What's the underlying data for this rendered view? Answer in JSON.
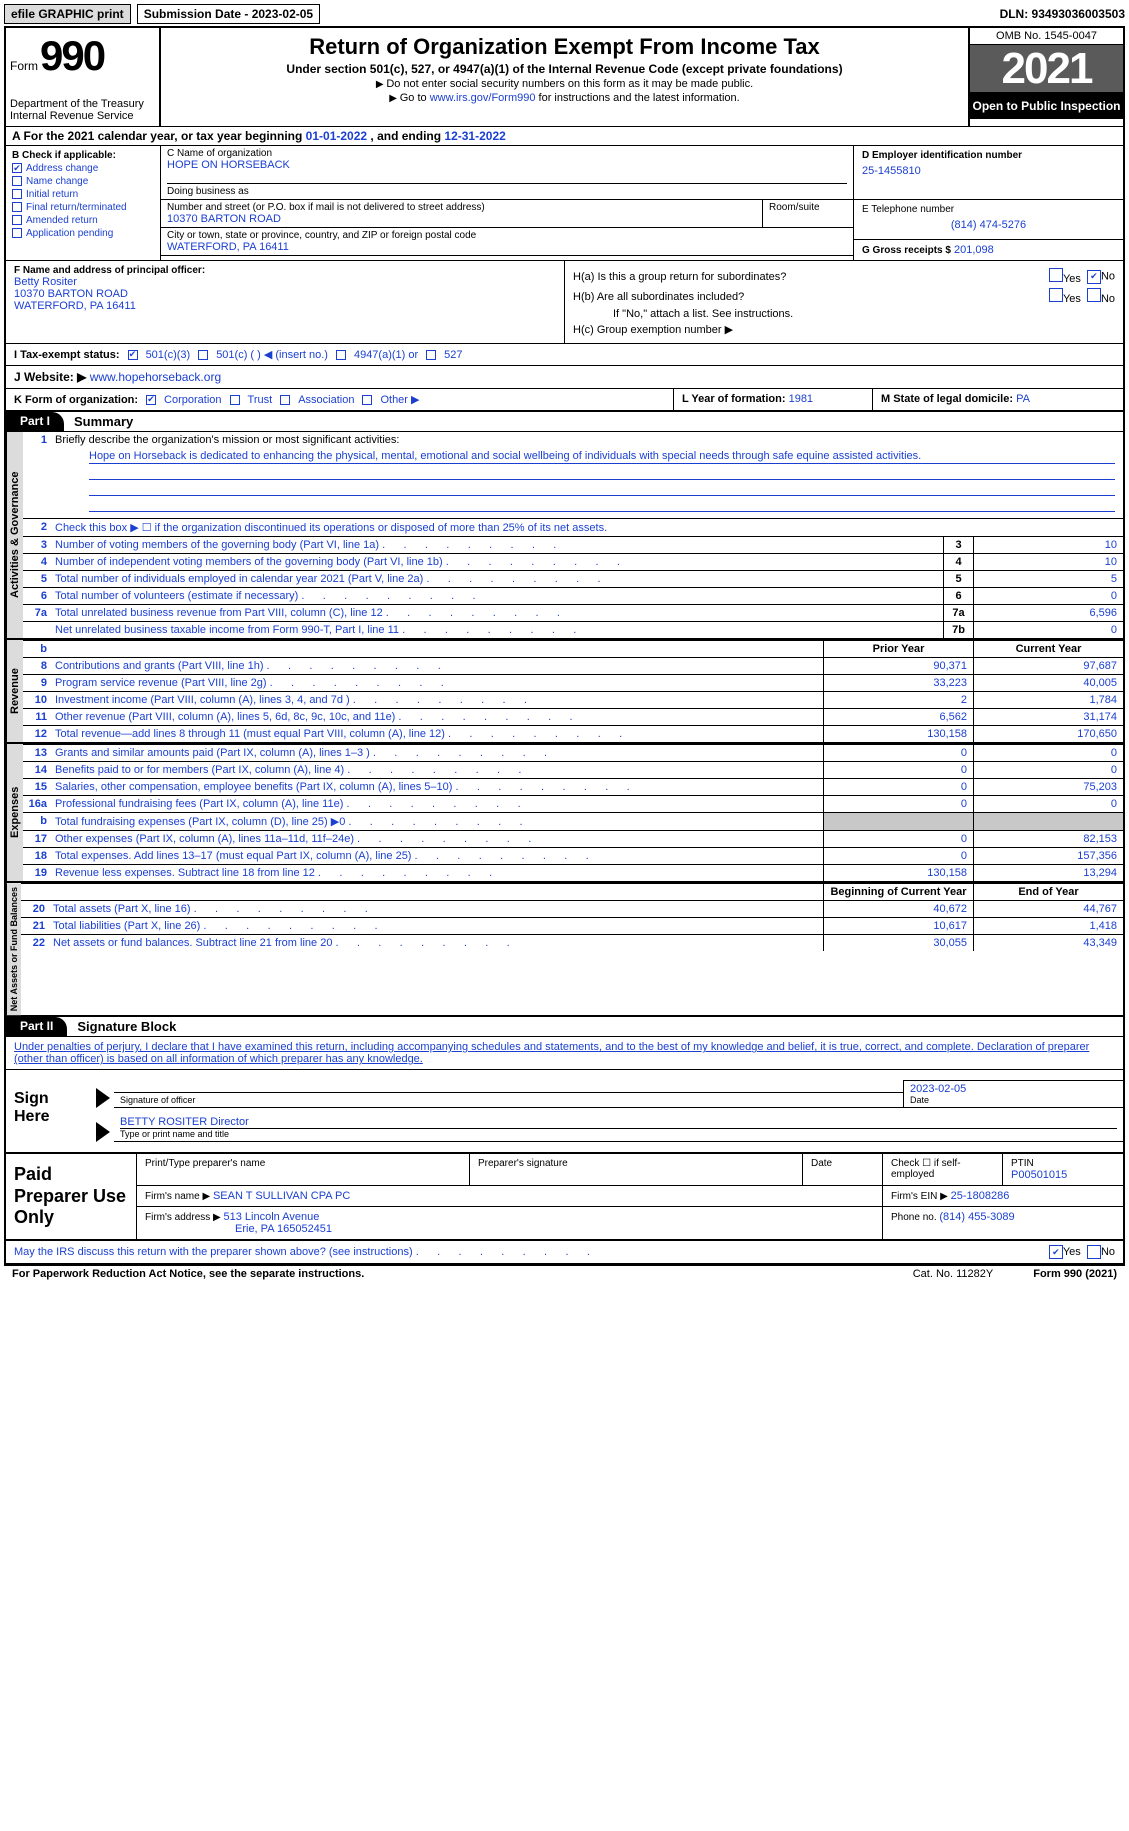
{
  "topbar": {
    "efile": "efile GRAPHIC print",
    "submission": "Submission Date - 2023-02-05",
    "dln": "DLN: 93493036003503"
  },
  "header": {
    "form_word": "Form",
    "form_num": "990",
    "dept": "Department of the Treasury Internal Revenue Service",
    "title": "Return of Organization Exempt From Income Tax",
    "subtitle": "Under section 501(c), 527, or 4947(a)(1) of the Internal Revenue Code (except private foundations)",
    "instr1": "Do not enter social security numbers on this form as it may be made public.",
    "instr2_a": "Go to ",
    "instr2_link": "www.irs.gov/Form990",
    "instr2_b": " for instructions and the latest information.",
    "omb": "OMB No. 1545-0047",
    "year": "2021",
    "open": "Open to Public Inspection"
  },
  "row_a": {
    "prefix": "A   For the 2021 calendar year, or tax year beginning ",
    "begin": "01-01-2022",
    "mid": "   , and ending ",
    "end": "12-31-2022"
  },
  "col_b": {
    "head": "B Check if applicable:",
    "address_change": "Address change",
    "name_change": "Name change",
    "initial_return": "Initial return",
    "final_return": "Final return/terminated",
    "amended": "Amended return",
    "app_pending": "Application pending"
  },
  "col_c": {
    "name_label": "C Name of organization",
    "name": "HOPE ON HORSEBACK",
    "dba_label": "Doing business as",
    "dba": "",
    "street_label": "Number and street (or P.O. box if mail is not delivered to street address)",
    "street": "10370 BARTON ROAD",
    "room_label": "Room/suite",
    "city_label": "City or town, state or province, country, and ZIP or foreign postal code",
    "city": "WATERFORD, PA   16411"
  },
  "col_d": {
    "ein_label": "D Employer identification number",
    "ein": "25-1455810",
    "phone_label": "E Telephone number",
    "phone": "(814) 474-5276",
    "gross_label": "G Gross receipts $",
    "gross": "201,098"
  },
  "officer": {
    "label": "F Name and address of principal officer:",
    "name": "Betty Rositer",
    "street": "10370 BARTON ROAD",
    "city": "WATERFORD, PA   16411"
  },
  "h_block": {
    "ha": "H(a)  Is this a group return for subordinates?",
    "hb": "H(b)  Are all subordinates included?",
    "hb_note": "If \"No,\" attach a list. See instructions.",
    "hc": "H(c)  Group exemption number ▶",
    "yes": "Yes",
    "no": "No"
  },
  "line_i": {
    "label": "I    Tax-exempt status:",
    "o1": "501(c)(3)",
    "o2": "501(c) (   ) ◀ (insert no.)",
    "o3": "4947(a)(1) or",
    "o4": "527"
  },
  "line_j": {
    "label": "J   Website: ▶",
    "url": "www.hopehorseback.org"
  },
  "line_k": {
    "label": "K Form of organization:",
    "corp": "Corporation",
    "trust": "Trust",
    "assoc": "Association",
    "other": "Other ▶",
    "year_label": "L Year of formation:",
    "year": "1981",
    "state_label": "M State of legal domicile:",
    "state": "PA"
  },
  "part1": {
    "tag": "Part I",
    "title": "Summary",
    "tabs": {
      "ag": "Activities & Governance",
      "rev": "Revenue",
      "exp": "Expenses",
      "na": "Net Assets or Fund Balances"
    },
    "l1_label": "Briefly describe the organization's mission or most significant activities:",
    "l1_text": "Hope on Horseback is dedicated to enhancing the physical, mental, emotional and social wellbeing of individuals with special needs through safe equine assisted activities.",
    "l2": "Check this box ▶ ☐  if the organization discontinued its operations or disposed of more than 25% of its net assets.",
    "lines_ag": [
      {
        "n": "3",
        "t": "Number of voting members of the governing body (Part VI, line 1a)",
        "box": "3",
        "v": "10"
      },
      {
        "n": "4",
        "t": "Number of independent voting members of the governing body (Part VI, line 1b)",
        "box": "4",
        "v": "10"
      },
      {
        "n": "5",
        "t": "Total number of individuals employed in calendar year 2021 (Part V, line 2a)",
        "box": "5",
        "v": "5"
      },
      {
        "n": "6",
        "t": "Total number of volunteers (estimate if necessary)",
        "box": "6",
        "v": "0"
      },
      {
        "n": "7a",
        "t": "Total unrelated business revenue from Part VIII, column (C), line 12",
        "box": "7a",
        "v": "6,596"
      },
      {
        "n": "",
        "t": "Net unrelated business taxable income from Form 990-T, Part I, line 11",
        "box": "7b",
        "v": "0"
      }
    ],
    "hdr_prior": "Prior Year",
    "hdr_curr": "Current Year",
    "lines_rev": [
      {
        "n": "8",
        "t": "Contributions and grants (Part VIII, line 1h)",
        "p": "90,371",
        "c": "97,687"
      },
      {
        "n": "9",
        "t": "Program service revenue (Part VIII, line 2g)",
        "p": "33,223",
        "c": "40,005"
      },
      {
        "n": "10",
        "t": "Investment income (Part VIII, column (A), lines 3, 4, and 7d )",
        "p": "2",
        "c": "1,784"
      },
      {
        "n": "11",
        "t": "Other revenue (Part VIII, column (A), lines 5, 6d, 8c, 9c, 10c, and 11e)",
        "p": "6,562",
        "c": "31,174"
      },
      {
        "n": "12",
        "t": "Total revenue—add lines 8 through 11 (must equal Part VIII, column (A), line 12)",
        "p": "130,158",
        "c": "170,650"
      }
    ],
    "lines_exp": [
      {
        "n": "13",
        "t": "Grants and similar amounts paid (Part IX, column (A), lines 1–3 )",
        "p": "0",
        "c": "0"
      },
      {
        "n": "14",
        "t": "Benefits paid to or for members (Part IX, column (A), line 4)",
        "p": "0",
        "c": "0"
      },
      {
        "n": "15",
        "t": "Salaries, other compensation, employee benefits (Part IX, column (A), lines 5–10)",
        "p": "0",
        "c": "75,203"
      },
      {
        "n": "16a",
        "t": "Professional fundraising fees (Part IX, column (A), line 11e)",
        "p": "0",
        "c": "0"
      },
      {
        "n": "b",
        "t": "Total fundraising expenses (Part IX, column (D), line 25) ▶0",
        "p": "",
        "c": "",
        "shade": true
      },
      {
        "n": "17",
        "t": "Other expenses (Part IX, column (A), lines 11a–11d, 11f–24e)",
        "p": "0",
        "c": "82,153"
      },
      {
        "n": "18",
        "t": "Total expenses. Add lines 13–17 (must equal Part IX, column (A), line 25)",
        "p": "0",
        "c": "157,356"
      },
      {
        "n": "19",
        "t": "Revenue less expenses. Subtract line 18 from line 12",
        "p": "130,158",
        "c": "13,294"
      }
    ],
    "hdr_begin": "Beginning of Current Year",
    "hdr_end": "End of Year",
    "lines_na": [
      {
        "n": "20",
        "t": "Total assets (Part X, line 16)",
        "p": "40,672",
        "c": "44,767"
      },
      {
        "n": "21",
        "t": "Total liabilities (Part X, line 26)",
        "p": "10,617",
        "c": "1,418"
      },
      {
        "n": "22",
        "t": "Net assets or fund balances. Subtract line 21 from line 20",
        "p": "30,055",
        "c": "43,349"
      }
    ]
  },
  "part2": {
    "tag": "Part II",
    "title": "Signature Block",
    "decl": "Under penalties of perjury, I declare that I have examined this return, including accompanying schedules and statements, and to the best of my knowledge and belief, it is true, correct, and complete. Declaration of preparer (other than officer) is based on all information of which preparer has any knowledge.",
    "sign_here": "Sign Here",
    "sig_officer": "Signature of officer",
    "sig_date_head": "Date",
    "sig_date": "2023-02-05",
    "officer_name": "BETTY ROSITER  Director",
    "type_name": "Type or print name and title",
    "paid": "Paid Preparer Use Only",
    "h_prep_name": "Print/Type preparer's name",
    "h_prep_sig": "Preparer's signature",
    "h_date": "Date",
    "h_check": "Check ☐ if self-employed",
    "h_ptin": "PTIN",
    "ptin": "P00501015",
    "firm_name_l": "Firm's name    ▶",
    "firm_name": "SEAN T SULLIVAN CPA PC",
    "firm_ein_l": "Firm's EIN ▶",
    "firm_ein": "25-1808286",
    "firm_addr_l": "Firm's address ▶",
    "firm_addr1": "513 Lincoln Avenue",
    "firm_addr2": "Erie, PA  165052451",
    "firm_phone_l": "Phone no.",
    "firm_phone": "(814) 455-3089",
    "discuss": "May the IRS discuss this return with the preparer shown above? (see instructions)",
    "paperwork": "For Paperwork Reduction Act Notice, see the separate instructions.",
    "cat": "Cat. No. 11282Y",
    "form_foot": "Form 990 (2021)"
  }
}
